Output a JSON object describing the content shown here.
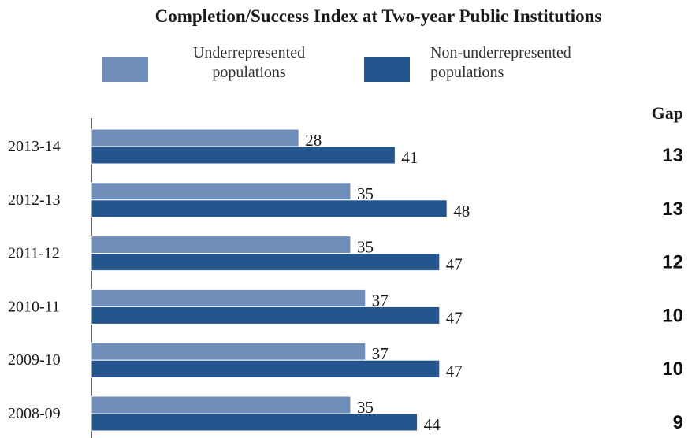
{
  "chart_data": {
    "type": "bar",
    "orientation": "horizontal",
    "title": "Completion/Success Index at Two-year Public  Institutions",
    "categories": [
      "2013-14",
      "2012-13",
      "2011-12",
      "2010-11",
      "2009-10",
      "2008-09"
    ],
    "series": [
      {
        "name": "Underrepresented populations",
        "values": [
          28,
          35,
          35,
          37,
          37,
          35
        ],
        "color": "#6f8fba"
      },
      {
        "name": "Non-underrepresented populations",
        "values": [
          41,
          48,
          47,
          47,
          47,
          44
        ],
        "color": "#24558c"
      }
    ],
    "gap_header": "Gap",
    "gaps": [
      13,
      13,
      12,
      10,
      10,
      9
    ],
    "legend_position": "top",
    "grid": false,
    "xlim": [
      0,
      55
    ]
  },
  "legend": {
    "underrep_line1": "Underrepresented",
    "underrep_line2": "populations",
    "nonunderrep_line1": "Non-underrepresented",
    "nonunderrep_line2": "populations"
  }
}
